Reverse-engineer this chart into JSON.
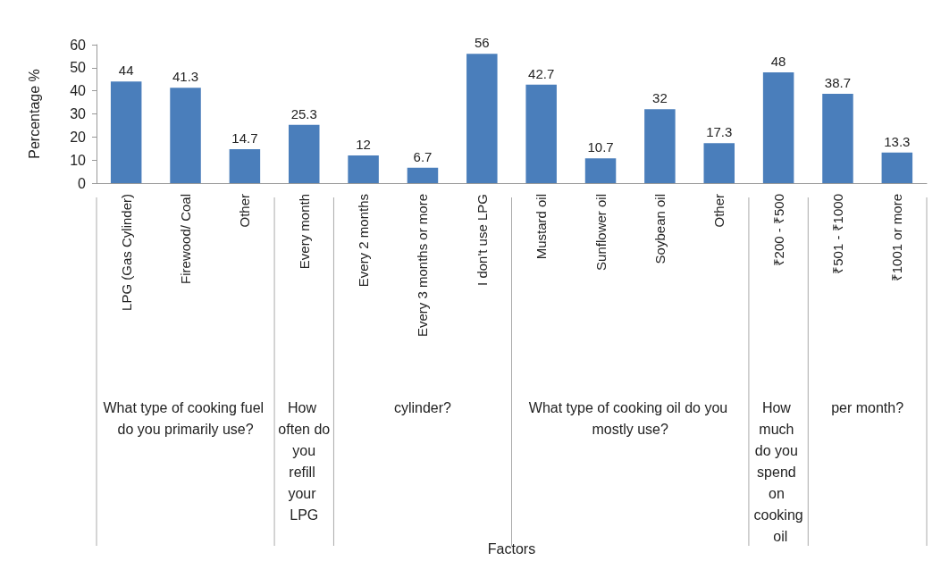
{
  "chart_data": {
    "type": "bar",
    "ylabel": "Percentage %",
    "categories": [
      "LPG (Gas Cylinder)",
      "Firewood/ Coal",
      "Other",
      "Every month",
      "Every 2 months",
      "Every 3 months or more",
      "I don't use LPG",
      "Mustard oil",
      "Sunflower oil",
      "Soybean oil",
      "Other",
      "₹200 - ₹500",
      "₹501 - ₹1000",
      "₹1001 or more"
    ],
    "values": [
      44,
      41.3,
      14.7,
      25.3,
      12,
      6.7,
      56,
      42.7,
      10.7,
      32,
      17.3,
      48,
      38.7,
      13.3
    ],
    "color": "#4a7ebb",
    "data_labels": true,
    "grid": false,
    "ylim": [
      0,
      60
    ],
    "yticks": [
      0,
      10,
      20,
      30,
      40,
      50,
      60
    ],
    "annotations": [
      "What type of cooking fuel do you primarily use?",
      "How often do you refill your LPG",
      "cylinder?",
      "What type of cooking oil do you mostly use?",
      "How much do you spend on cooking oil",
      "per month?",
      "Factors"
    ]
  }
}
